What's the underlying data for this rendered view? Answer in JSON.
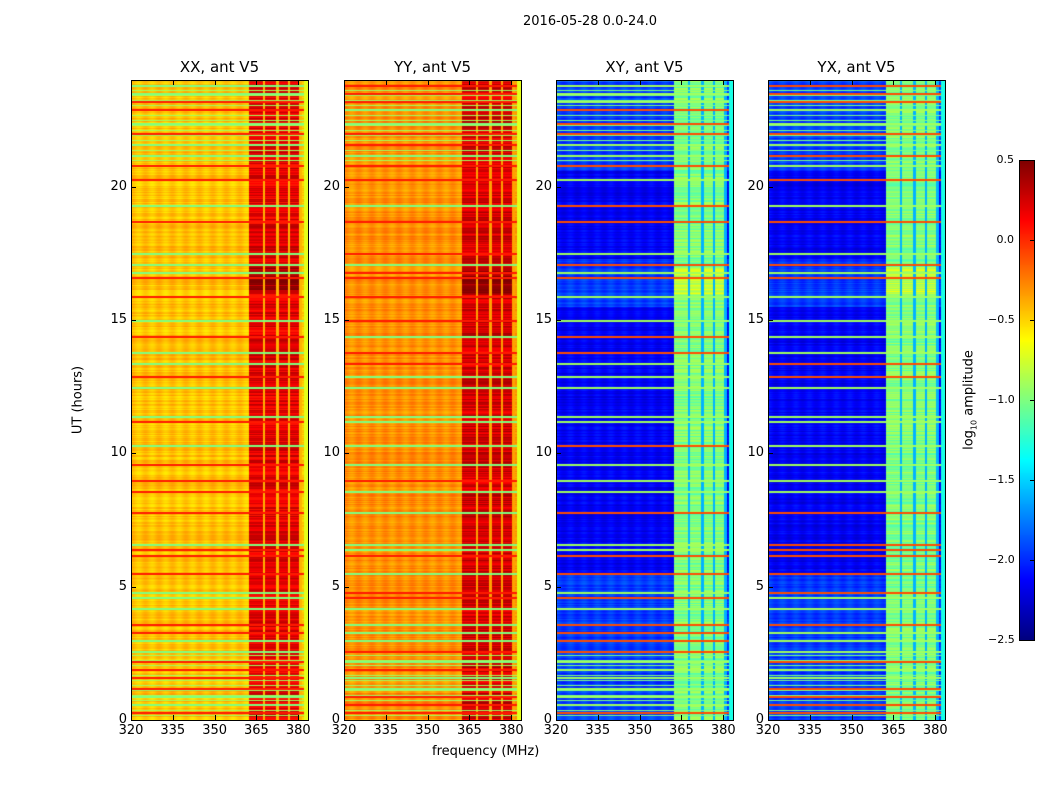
{
  "chart_data": {
    "type": "heatmap",
    "title": "2016-05-28 0.0-24.0",
    "xlabel": "frequency (MHz)",
    "ylabel": "UT (hours)",
    "xlim": [
      320,
      383.5
    ],
    "ylim": [
      0,
      24
    ],
    "xticks": [
      "320",
      "335",
      "350",
      "365",
      "380"
    ],
    "xtick_values": [
      320,
      335,
      350,
      365,
      380
    ],
    "yticks": [
      "0",
      "5",
      "10",
      "15",
      "20"
    ],
    "ytick_values": [
      0,
      5,
      10,
      15,
      20
    ],
    "colorbar": {
      "label": "log10 amplitude",
      "label_main": "log",
      "label_sub": "10",
      "label_rest": " amplitude",
      "colormap": "jet",
      "clim": [
        -2.5,
        0.5
      ],
      "ticks": [
        "0.5",
        "0.0",
        "−0.5",
        "−1.0",
        "−1.5",
        "−2.0",
        "−2.5"
      ],
      "tick_values": [
        0.5,
        0.0,
        -0.5,
        -1.0,
        -1.5,
        -2.0,
        -2.5
      ]
    },
    "band_freq_range_mhz": [
      362,
      381
    ],
    "band_gap_freqs_mhz": [
      367.5,
      372.5,
      376.5,
      380.5
    ],
    "rfi_hours": [
      0.3,
      0.6,
      0.9,
      1.2,
      1.6,
      1.9,
      2.2,
      2.6,
      3.0,
      3.3,
      3.6,
      4.2,
      4.6,
      4.8,
      5.5,
      6.2,
      6.4,
      6.6,
      7.8,
      8.6,
      9.0,
      9.6,
      10.3,
      11.2,
      11.4,
      12.5,
      12.9,
      13.4,
      13.8,
      14.4,
      15.0,
      15.9,
      16.6,
      16.8,
      17.1,
      17.5,
      18.7,
      19.3,
      20.3,
      20.8,
      21.2,
      21.6,
      22.0,
      22.4,
      22.9,
      23.2,
      23.5,
      23.8
    ],
    "panels": [
      {
        "title": "XX, ant V5",
        "base_level": -0.45,
        "band_level": 0.2
      },
      {
        "title": "YY, ant V5",
        "base_level": -0.3,
        "band_level": 0.25
      },
      {
        "title": "XY, ant V5",
        "base_level": -1.95,
        "band_level": -1.0
      },
      {
        "title": "YX, ant V5",
        "base_level": -1.95,
        "band_level": -1.0
      }
    ]
  }
}
